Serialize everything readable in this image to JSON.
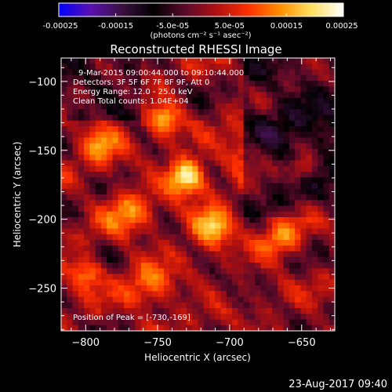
{
  "chart_data": {
    "type": "heatmap",
    "title": "Reconstructed RHESSI Image",
    "xlabel": "Heliocentric X (arcsec)",
    "ylabel": "Heliocentric Y (arcsec)",
    "xlim": [
      -817,
      -627
    ],
    "ylim": [
      -281,
      -83
    ],
    "xticks": [
      -800,
      -750,
      -700,
      -650
    ],
    "yticks": [
      -100,
      -150,
      -200,
      -250
    ],
    "xtick_labels": [
      "−800",
      "−750",
      "−700",
      "−650"
    ],
    "ytick_labels": [
      "−100",
      "−150",
      "−200",
      "−250"
    ],
    "info_lines": [
      "9-Mar-2015 09:00:44.000 to 09:10:44.000",
      "Detectors: 3F 5F 6F 7F 8F 9F, Att 0",
      "Energy Range: 12.0 - 25.0 keV",
      "Clean     Total counts: 1.04E+04"
    ],
    "peak_label": "Position of Peak = [-730,-169]",
    "peak": [
      -730,
      -169
    ],
    "colorbar": {
      "range": [
        -0.00025,
        0.00025
      ],
      "ticks": [
        -0.00025,
        -0.00015,
        -5e-05,
        5e-05,
        0.00015,
        0.00025
      ],
      "tick_labels": [
        "-0.00025",
        "-0.00015",
        "-5.0e-05",
        "5.0e-05",
        "0.00015",
        "0.00025"
      ],
      "unit_label": "(photons cm⁻² s⁻¹ asec⁻²)",
      "colors": [
        "#0000ff",
        "#5a10b0",
        "#3a1040",
        "#000000",
        "#5a0a2a",
        "#b01010",
        "#ff3000",
        "#ff9000",
        "#ffe060",
        "#ffffff"
      ]
    },
    "sources": [
      {
        "x": -730,
        "y": -169,
        "peak": 0.000245,
        "sigma": 9
      },
      {
        "x": -745,
        "y": -128,
        "peak": 0.00017,
        "sigma": 8
      },
      {
        "x": -712,
        "y": -205,
        "peak": 0.00019,
        "sigma": 10
      },
      {
        "x": -790,
        "y": -145,
        "peak": 0.00013,
        "sigma": 10
      },
      {
        "x": -800,
        "y": -240,
        "peak": 0.00015,
        "sigma": 8
      },
      {
        "x": -665,
        "y": -215,
        "peak": 0.00013,
        "sigma": 10
      },
      {
        "x": -650,
        "y": -165,
        "peak": 0.00013,
        "sigma": 7
      },
      {
        "x": -755,
        "y": -250,
        "peak": 0.00012,
        "sigma": 12
      },
      {
        "x": -690,
        "y": -150,
        "peak": 0.00011,
        "sigma": 10
      },
      {
        "x": -770,
        "y": -195,
        "peak": 0.00012,
        "sigma": 12
      }
    ]
  },
  "footer": {
    "timestamp": "23-Aug-2017 09:40"
  }
}
